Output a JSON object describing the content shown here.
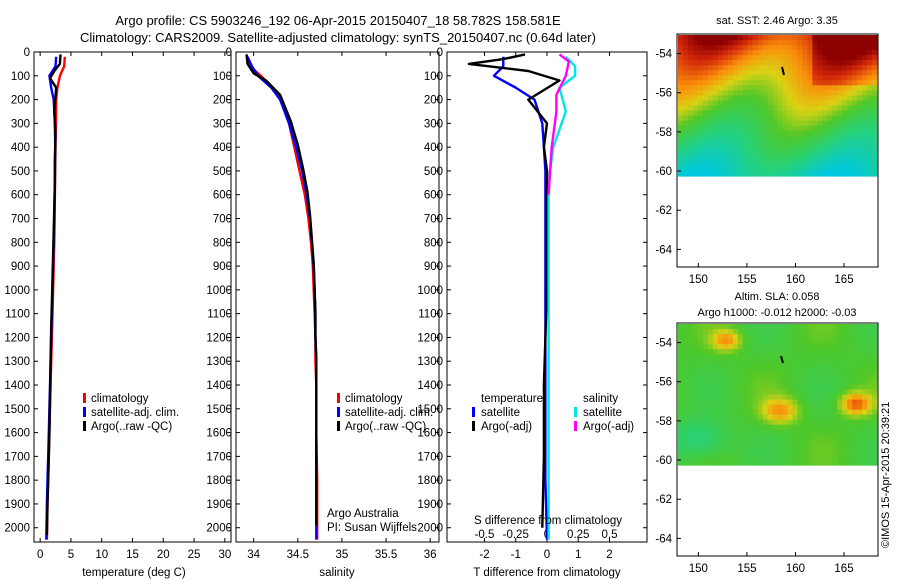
{
  "titles": {
    "line1": "Argo profile: CS 5903246_192 06-Apr-2015 20150407_18 58.782S 158.581E",
    "line2": "Climatology: CARS2009. Satellite-adjusted climatology: synTS_20150407.nc (0.64d later)"
  },
  "colors": {
    "climatology": "#ff0000",
    "satellite": "#0000ff",
    "argo": "#000000",
    "satellite_salinity": "#00e5e5",
    "argo_salinity": "#ff00ff"
  },
  "depth_axis": {
    "ticks": [
      "0",
      "100",
      "200",
      "300",
      "400",
      "500",
      "600",
      "700",
      "800",
      "900",
      "1000",
      "1100",
      "1200",
      "1300",
      "1400",
      "1500",
      "1600",
      "1700",
      "1800",
      "1900",
      "2000"
    ],
    "ylim": [
      0,
      2060
    ]
  },
  "temperature_panel": {
    "xlabel": "temperature (deg C)",
    "xticks": [
      "0",
      "5",
      "10",
      "15",
      "20",
      "25",
      "30"
    ],
    "legend": [
      "climatology",
      "satellite-adj. clim.",
      "Argo(..raw -QC)"
    ]
  },
  "salinity_panel": {
    "xlabel": "salinity",
    "xticks": [
      "34",
      "34.5",
      "35",
      "35.5",
      "36"
    ],
    "legend": [
      "climatology",
      "satellite-adj. clim.",
      "Argo(..raw -QC)"
    ],
    "note1": "Argo Australia",
    "note2": "PI: Susan Wijffels"
  },
  "difference_panel": {
    "xlabel": "T difference from climatology",
    "top_label": "S difference from climatology",
    "xticks": [
      "-2",
      "-1",
      "0",
      "1",
      "2"
    ],
    "s_ticks": [
      "-0.5",
      "-0.25",
      "0",
      "0.25",
      "0.5"
    ],
    "legend_temperature_title": "temperature",
    "legend_salinity_title": "salinity",
    "legend_temperature": [
      "satellite",
      "Argo(-adj)"
    ],
    "legend_salinity": [
      "satellite",
      "Argo(-adj)"
    ]
  },
  "sst_map": {
    "title": "sat. SST: 2.46 Argo: 3.35",
    "yticks": [
      "-54",
      "-56",
      "-58",
      "-60",
      "-62",
      "-64"
    ],
    "xticks": [
      "150",
      "155",
      "160",
      "165"
    ]
  },
  "sla_map": {
    "title1": "Altim. SLA: 0.058",
    "title2": "Argo h1000: -0.012 h2000: -0.03",
    "yticks": [
      "-54",
      "-56",
      "-58",
      "-60",
      "-62",
      "-64"
    ],
    "xticks": [
      "150",
      "155",
      "160",
      "165"
    ]
  },
  "credit": "©IMOS 15-Apr-2015 20:39:21",
  "chart_data": [
    {
      "type": "line",
      "panel": "temperature",
      "xlabel": "temperature (deg C)",
      "ylabel": "",
      "xlim": [
        -1,
        31
      ],
      "ylim": [
        0,
        2060
      ],
      "series": [
        {
          "name": "climatology",
          "x": [
            4.0,
            3.9,
            3.2,
            2.8,
            2.6,
            2.55,
            2.5,
            2.45,
            2.4,
            2.35,
            2.3,
            2.2,
            2.1,
            2.0,
            1.9,
            1.8,
            1.6,
            1.5,
            1.4,
            1.3,
            1.2,
            1.1
          ],
          "y": [
            20,
            60,
            100,
            150,
            200,
            300,
            400,
            500,
            600,
            700,
            800,
            900,
            1000,
            1100,
            1200,
            1300,
            1500,
            1600,
            1700,
            1800,
            1900,
            2050
          ]
        },
        {
          "name": "satellite-adj. clim.",
          "x": [
            2.6,
            2.5,
            1.5,
            1.8,
            2.2,
            2.4,
            2.45,
            2.4,
            2.35,
            2.3,
            2.2,
            2.1,
            2.0,
            1.9,
            1.8,
            1.7,
            1.5,
            1.4,
            1.3,
            1.2,
            1.1,
            1.0
          ],
          "y": [
            20,
            60,
            100,
            150,
            200,
            300,
            400,
            500,
            600,
            700,
            800,
            900,
            1000,
            1100,
            1200,
            1300,
            1500,
            1600,
            1700,
            1800,
            1900,
            2050
          ]
        },
        {
          "name": "Argo(..raw -QC)",
          "x": [
            3.3,
            3.2,
            2.3,
            1.6,
            2.6,
            2.3,
            2.5,
            2.4,
            2.4,
            2.3,
            2.2,
            2.1,
            2.0,
            1.9,
            1.8,
            1.7,
            1.6,
            1.5,
            1.4,
            1.3,
            1.2,
            1.1
          ],
          "y": [
            10,
            50,
            80,
            110,
            150,
            250,
            350,
            450,
            550,
            650,
            750,
            850,
            950,
            1050,
            1150,
            1300,
            1450,
            1600,
            1700,
            1800,
            1900,
            2030
          ]
        }
      ]
    },
    {
      "type": "line",
      "panel": "salinity",
      "xlabel": "salinity",
      "xlim": [
        33.8,
        36.1
      ],
      "ylim": [
        0,
        2060
      ],
      "series": [
        {
          "name": "climatology",
          "x": [
            33.93,
            33.96,
            34.08,
            34.22,
            34.32,
            34.4,
            34.46,
            34.52,
            34.58,
            34.62,
            34.65,
            34.67,
            34.68,
            34.69,
            34.7,
            34.7,
            34.71,
            34.71,
            34.71,
            34.72,
            34.72,
            34.72
          ],
          "y": [
            20,
            60,
            100,
            150,
            200,
            300,
            400,
            500,
            600,
            700,
            800,
            900,
            1000,
            1100,
            1200,
            1300,
            1400,
            1500,
            1600,
            1800,
            1900,
            2050
          ]
        },
        {
          "name": "satellite-adj. clim.",
          "x": [
            33.93,
            33.98,
            34.05,
            34.2,
            34.3,
            34.4,
            34.48,
            34.55,
            34.6,
            34.64,
            34.66,
            34.68,
            34.69,
            34.7,
            34.7,
            34.71,
            34.71,
            34.71,
            34.71,
            34.71,
            34.71,
            34.71
          ],
          "y": [
            20,
            60,
            100,
            150,
            200,
            300,
            400,
            500,
            600,
            700,
            800,
            900,
            1000,
            1100,
            1200,
            1300,
            1400,
            1500,
            1600,
            1800,
            1900,
            2050
          ]
        },
        {
          "name": "Argo(..raw -QC)",
          "x": [
            33.92,
            33.93,
            34.0,
            34.14,
            34.3,
            34.42,
            34.5,
            34.56,
            34.61,
            34.64,
            34.66,
            34.68,
            34.69,
            34.7,
            34.7,
            34.71,
            34.71,
            34.71,
            34.71,
            34.71,
            34.71,
            34.71
          ],
          "y": [
            10,
            50,
            90,
            120,
            180,
            290,
            390,
            490,
            590,
            690,
            790,
            890,
            990,
            1090,
            1190,
            1290,
            1390,
            1490,
            1590,
            1790,
            1890,
            1990
          ]
        }
      ]
    },
    {
      "type": "line",
      "panel": "difference",
      "xlabel": "T difference from climatology",
      "xlim": [
        -3.2,
        3.2
      ],
      "ylim": [
        0,
        2060
      ],
      "series": [
        {
          "name": "temperature satellite",
          "x": [
            -1.4,
            -1.4,
            -1.7,
            -1.0,
            -0.4,
            -0.15,
            -0.1,
            -0.05,
            -0.05,
            -0.05,
            -0.05,
            -0.05,
            -0.05,
            -0.05,
            -0.05,
            0.0
          ],
          "y": [
            20,
            60,
            100,
            150,
            200,
            300,
            400,
            500,
            600,
            700,
            800,
            1000,
            1200,
            1500,
            1800,
            2050
          ]
        },
        {
          "name": "temperature Argo(-adj)",
          "x": [
            -0.7,
            -1.4,
            -2.5,
            -0.6,
            0.4,
            -0.6,
            0.0,
            -0.1,
            0.0,
            0.0,
            0.0,
            0.0,
            -0.05,
            -0.1,
            -0.1,
            -0.15
          ],
          "y": [
            10,
            30,
            50,
            80,
            120,
            200,
            300,
            400,
            500,
            600,
            800,
            1000,
            1200,
            1400,
            1700,
            2000
          ]
        },
        {
          "name": "salinity satellite",
          "x": [
            0.6,
            0.9,
            0.9,
            0.4,
            0.6,
            0.2,
            0.1,
            0.05,
            0.05,
            0.05,
            0.05,
            0.05,
            0.05,
            0.05,
            0.05
          ],
          "y": [
            20,
            60,
            100,
            150,
            250,
            400,
            500,
            600,
            700,
            800,
            1000,
            1200,
            1500,
            1800,
            2050
          ]
        },
        {
          "name": "salinity Argo(-adj)",
          "x": [
            0.4,
            0.7,
            0.6,
            0.3,
            0.3,
            0.15,
            0.1,
            0.05
          ],
          "y": [
            10,
            40,
            100,
            180,
            250,
            400,
            500,
            600
          ]
        }
      ]
    }
  ]
}
